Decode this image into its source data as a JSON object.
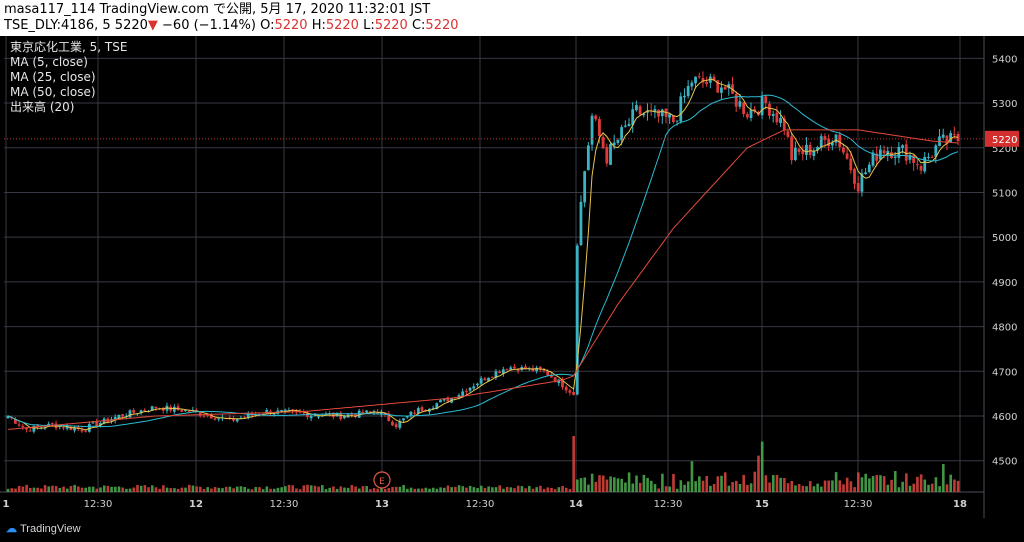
{
  "header": {
    "line1": "masa117_114 TradingView.com で公開, 5月 17, 2020 11:32:01 JST",
    "symbol": "TSE_DLY:4186, 5",
    "last": "5220",
    "change_marker": "▼",
    "change": "−60 (−1.14%)",
    "o_label": "O:",
    "o_value": "5220",
    "h_label": "H:",
    "h_value": "5220",
    "l_label": "L:",
    "l_value": "5220",
    "c_label": "C:",
    "c_value": "5220"
  },
  "legend": [
    "東京応化工業, 5, TSE",
    "MA (5, close)",
    "MA (25, close)",
    "MA (50, close)",
    "出来高 (20)"
  ],
  "footer": {
    "brand": "TradingView"
  },
  "colors": {
    "up": "#3bb3c3",
    "down": "#e03b3b",
    "ma5": "#e8c64a",
    "ma25": "#2bbcd4",
    "ma50": "#e24a3b",
    "vol_up": "#4caf50",
    "vol_down": "#e0453e",
    "grid": "#363a45",
    "price_badge": "#d32f2f"
  },
  "chart_data": {
    "type": "candlestick",
    "y_ticks": [
      4500,
      4600,
      4700,
      4800,
      4900,
      5000,
      5100,
      5200,
      5300,
      5400
    ],
    "ylim": [
      4430,
      5450
    ],
    "last_price": "5220",
    "x_ticks": [
      "1",
      "12:30",
      "12",
      "12:30",
      "13",
      "12:30",
      "14",
      "12:30",
      "15",
      "12:30",
      "18"
    ],
    "event_marker": "E",
    "price_path": [
      [
        0,
        4600
      ],
      [
        5,
        4570
      ],
      [
        12,
        4580
      ],
      [
        20,
        4570
      ],
      [
        30,
        4600
      ],
      [
        40,
        4620
      ],
      [
        50,
        4610
      ],
      [
        60,
        4590
      ],
      [
        70,
        4610
      ],
      [
        80,
        4605
      ],
      [
        90,
        4600
      ],
      [
        100,
        4610
      ],
      [
        105,
        4580
      ],
      [
        110,
        4610
      ],
      [
        120,
        4640
      ],
      [
        130,
        4690
      ],
      [
        135,
        4710
      ],
      [
        145,
        4700
      ],
      [
        150,
        4670
      ],
      [
        153,
        4650
      ],
      [
        154,
        5000
      ],
      [
        156,
        5150
      ],
      [
        158,
        5270
      ],
      [
        162,
        5180
      ],
      [
        170,
        5280
      ],
      [
        180,
        5260
      ],
      [
        185,
        5350
      ],
      [
        193,
        5340
      ],
      [
        200,
        5280
      ],
      [
        205,
        5300
      ],
      [
        210,
        5250
      ],
      [
        212,
        5180
      ],
      [
        218,
        5200
      ],
      [
        224,
        5230
      ],
      [
        230,
        5120
      ],
      [
        236,
        5200
      ],
      [
        243,
        5190
      ],
      [
        247,
        5160
      ],
      [
        252,
        5210
      ],
      [
        258,
        5220
      ]
    ],
    "ma_slow": [
      [
        0,
        4570
      ],
      [
        40,
        4600
      ],
      [
        80,
        4610
      ],
      [
        120,
        4640
      ],
      [
        150,
        4680
      ],
      [
        153,
        4690
      ],
      [
        165,
        4850
      ],
      [
        180,
        5020
      ],
      [
        200,
        5200
      ],
      [
        210,
        5240
      ],
      [
        230,
        5240
      ],
      [
        250,
        5215
      ],
      [
        258,
        5210
      ]
    ],
    "volume": {
      "n": 258,
      "spikes": [
        [
          153,
          1.0
        ],
        [
          185,
          0.55
        ],
        [
          203,
          0.65
        ],
        [
          204,
          0.9
        ],
        [
          253,
          0.5
        ],
        [
          230,
          0.35
        ],
        [
          168,
          0.35
        ],
        [
          160,
          0.3
        ]
      ]
    }
  }
}
